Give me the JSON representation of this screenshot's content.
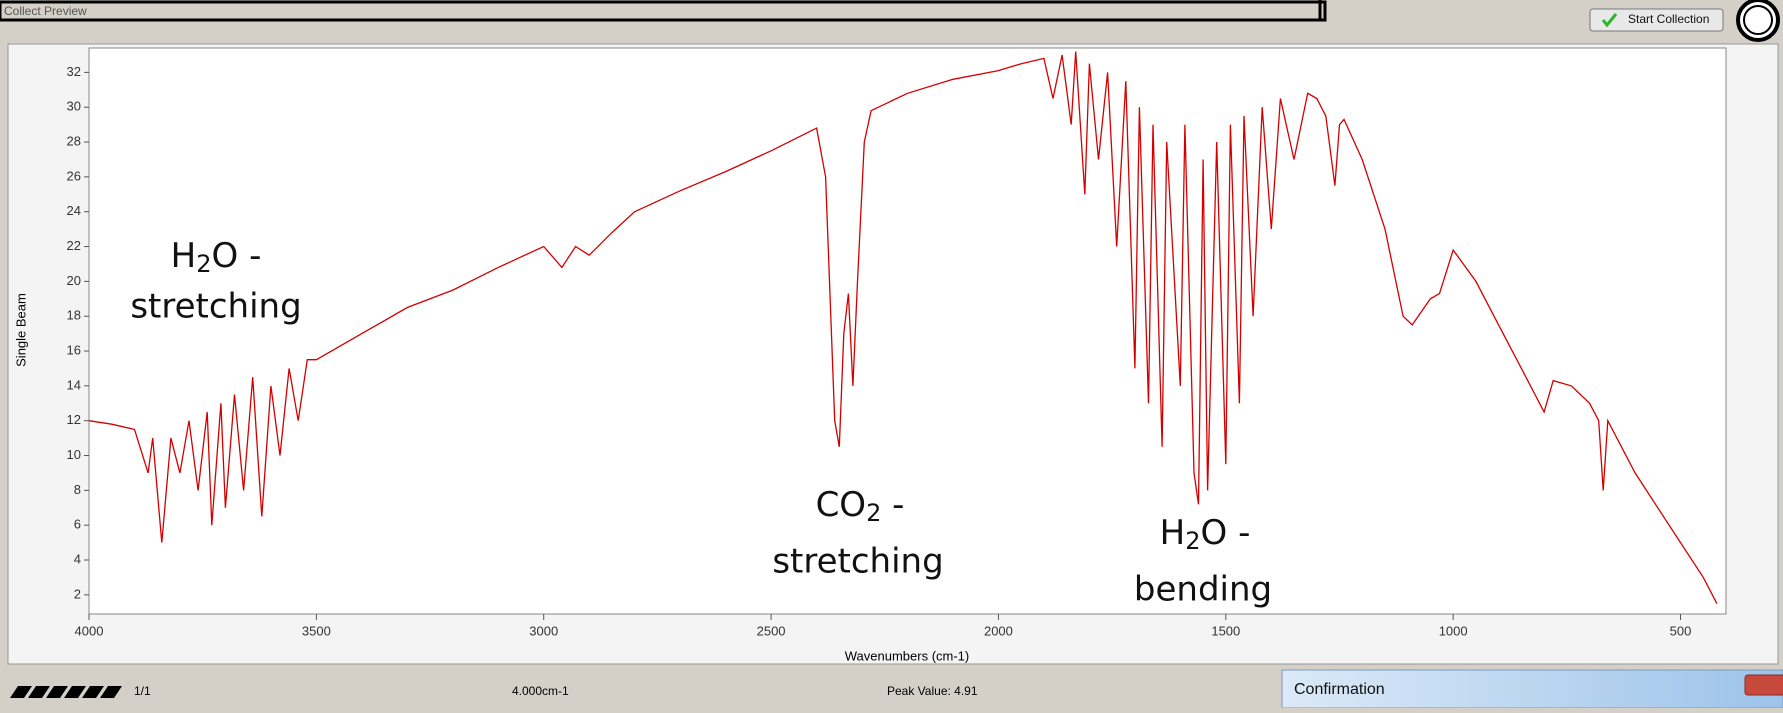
{
  "window": {
    "tab_title": "Collect Preview",
    "button": "Start Collection"
  },
  "chart_data": {
    "type": "line",
    "ylabel": "Single Beam",
    "xlabel": "Wavenumbers (cm-1)",
    "xlim": [
      4000,
      400
    ],
    "ylim": [
      0.9,
      33.4
    ],
    "xticks": [
      4000,
      3500,
      3000,
      2500,
      2000,
      1500,
      1000,
      500
    ],
    "yticks": [
      2,
      4,
      6,
      8,
      10,
      12,
      14,
      16,
      18,
      20,
      22,
      24,
      26,
      28,
      30,
      32
    ],
    "x": [
      4000,
      3950,
      3900,
      3870,
      3860,
      3840,
      3820,
      3800,
      3780,
      3760,
      3740,
      3730,
      3710,
      3700,
      3680,
      3660,
      3640,
      3620,
      3600,
      3580,
      3560,
      3540,
      3520,
      3500,
      3400,
      3300,
      3200,
      3100,
      3000,
      2960,
      2930,
      2900,
      2850,
      2800,
      2700,
      2600,
      2500,
      2400,
      2380,
      2360,
      2350,
      2340,
      2330,
      2320,
      2310,
      2295,
      2280,
      2200,
      2100,
      2000,
      1950,
      1900,
      1880,
      1860,
      1840,
      1830,
      1810,
      1800,
      1780,
      1760,
      1740,
      1720,
      1700,
      1690,
      1670,
      1660,
      1640,
      1630,
      1600,
      1590,
      1570,
      1560,
      1550,
      1540,
      1520,
      1500,
      1490,
      1470,
      1460,
      1440,
      1420,
      1400,
      1380,
      1350,
      1320,
      1300,
      1280,
      1260,
      1250,
      1240,
      1200,
      1150,
      1110,
      1090,
      1050,
      1030,
      1000,
      950,
      900,
      850,
      800,
      780,
      740,
      700,
      680,
      670,
      660,
      600,
      550,
      500,
      450,
      420
    ],
    "series": [
      {
        "name": "Single Beam",
        "color": "#d40000",
        "values": [
          12,
          11.8,
          11.5,
          9,
          11,
          5,
          11,
          9,
          12,
          8,
          12.5,
          6,
          13,
          7,
          13.5,
          8,
          14.5,
          6.5,
          14,
          10,
          15,
          12,
          15.5,
          15.5,
          17,
          18.5,
          19.5,
          20.8,
          22,
          20.8,
          22,
          21.5,
          22.8,
          24,
          25.2,
          26.3,
          27.5,
          28.8,
          26,
          12,
          10.5,
          17,
          19.3,
          14,
          20,
          28,
          29.8,
          30.8,
          31.6,
          32.1,
          32.5,
          32.8,
          30.5,
          33,
          29,
          33.2,
          25,
          32.5,
          27,
          32,
          22,
          31.5,
          15,
          30,
          13,
          29,
          10.5,
          28,
          14,
          29,
          9,
          7.2,
          27,
          8,
          28,
          9.5,
          29,
          13,
          29.5,
          18,
          30,
          23,
          30.5,
          27,
          30.8,
          30.5,
          29.5,
          25.5,
          29,
          29.3,
          27,
          23,
          18,
          17.5,
          19,
          19.3,
          21.8,
          20,
          17.5,
          15,
          12.5,
          14.3,
          14,
          13,
          12,
          8,
          12,
          9,
          7,
          5,
          3,
          1.5
        ]
      }
    ],
    "annotations": [
      {
        "pre": "H",
        "sub": "2",
        "post": "O -",
        "line2": "stretching"
      },
      {
        "pre": "CO",
        "sub": "2",
        "post": " -",
        "line2": "stretching"
      },
      {
        "pre": "H",
        "sub": "2",
        "post": "O -",
        "line2": "bending"
      }
    ]
  },
  "status": {
    "page": "1/1",
    "resolution": "4.000cm-1",
    "peak": "Peak Value: 4.91"
  },
  "dialog": {
    "title": "Confirmation"
  }
}
